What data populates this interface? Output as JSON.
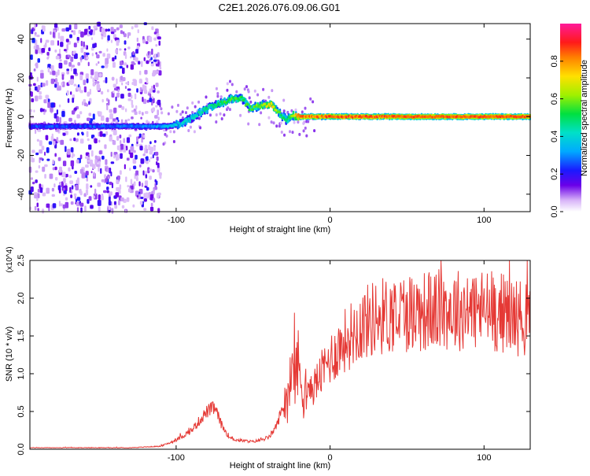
{
  "title": "C2E1.2026.076.09.06.G01",
  "colors": {
    "snr_line": "#e53935",
    "axis": "#000000",
    "background": "#ffffff"
  },
  "colorbar": {
    "label": "Normalized spectral amplitude",
    "range": [
      0.0,
      1.0
    ],
    "ticks": [
      "0.0",
      "0.2",
      "0.4",
      "0.6",
      "0.8"
    ]
  },
  "chart_data": [
    {
      "type": "heatmap",
      "name": "spectrogram",
      "xlabel": "Height of straight line (km)",
      "ylabel": "Frequency (Hz)",
      "xlim": [
        -195,
        130
      ],
      "ylim": [
        -49,
        48
      ],
      "xticks": [
        "-100",
        "0",
        "100"
      ],
      "yticks": [
        "40",
        "20",
        "0",
        "-20",
        "-40"
      ],
      "colormap": "rainbow (violet-blue-cyan-green-yellow-red)",
      "ridge": {
        "height_km": [
          -195,
          -160,
          -130,
          -115,
          -105,
          -95,
          -85,
          -75,
          -65,
          -58,
          -52,
          -45,
          -38,
          -33,
          -28,
          -25,
          -20,
          -10,
          0,
          50,
          100,
          130
        ],
        "frequency_hz": [
          -5,
          -5,
          -5,
          -5,
          -5,
          -3,
          2,
          6,
          9,
          10,
          4,
          6,
          6,
          2,
          -2,
          1,
          0,
          0,
          0,
          0,
          0,
          0
        ],
        "amplitude": [
          0.25,
          0.25,
          0.28,
          0.3,
          0.35,
          0.4,
          0.45,
          0.5,
          0.55,
          0.55,
          0.55,
          0.6,
          0.75,
          0.55,
          0.5,
          0.6,
          0.85,
          0.8,
          0.85,
          0.85,
          0.85,
          0.85
        ]
      },
      "background_noise_region_km": [
        -195,
        -110
      ]
    },
    {
      "type": "line",
      "name": "snr",
      "xlabel": "Height of straight line (km)",
      "ylabel": "SNR (10 * v/v)",
      "yscale_label": "(x10^4)",
      "xlim": [
        -195,
        130
      ],
      "ylim": [
        0,
        2.5
      ],
      "xticks": [
        "-100",
        "0",
        "100"
      ],
      "yticks": [
        "0.0",
        "0.5",
        "1.0",
        "1.5",
        "2.0",
        "2.5"
      ],
      "envelope_x": [
        -195,
        -130,
        -110,
        -100,
        -90,
        -80,
        -75,
        -70,
        -65,
        -60,
        -50,
        -40,
        -35,
        -30,
        -25,
        -22,
        -20,
        -15,
        -10,
        0,
        10,
        20,
        30,
        50,
        80,
        100,
        115,
        130
      ],
      "envelope_y": [
        0.02,
        0.02,
        0.04,
        0.12,
        0.25,
        0.5,
        0.55,
        0.3,
        0.15,
        0.12,
        0.1,
        0.15,
        0.3,
        0.6,
        0.9,
        1.15,
        1.0,
        0.75,
        0.85,
        1.2,
        1.45,
        1.65,
        1.75,
        1.82,
        1.85,
        1.85,
        1.8,
        1.7
      ]
    }
  ]
}
